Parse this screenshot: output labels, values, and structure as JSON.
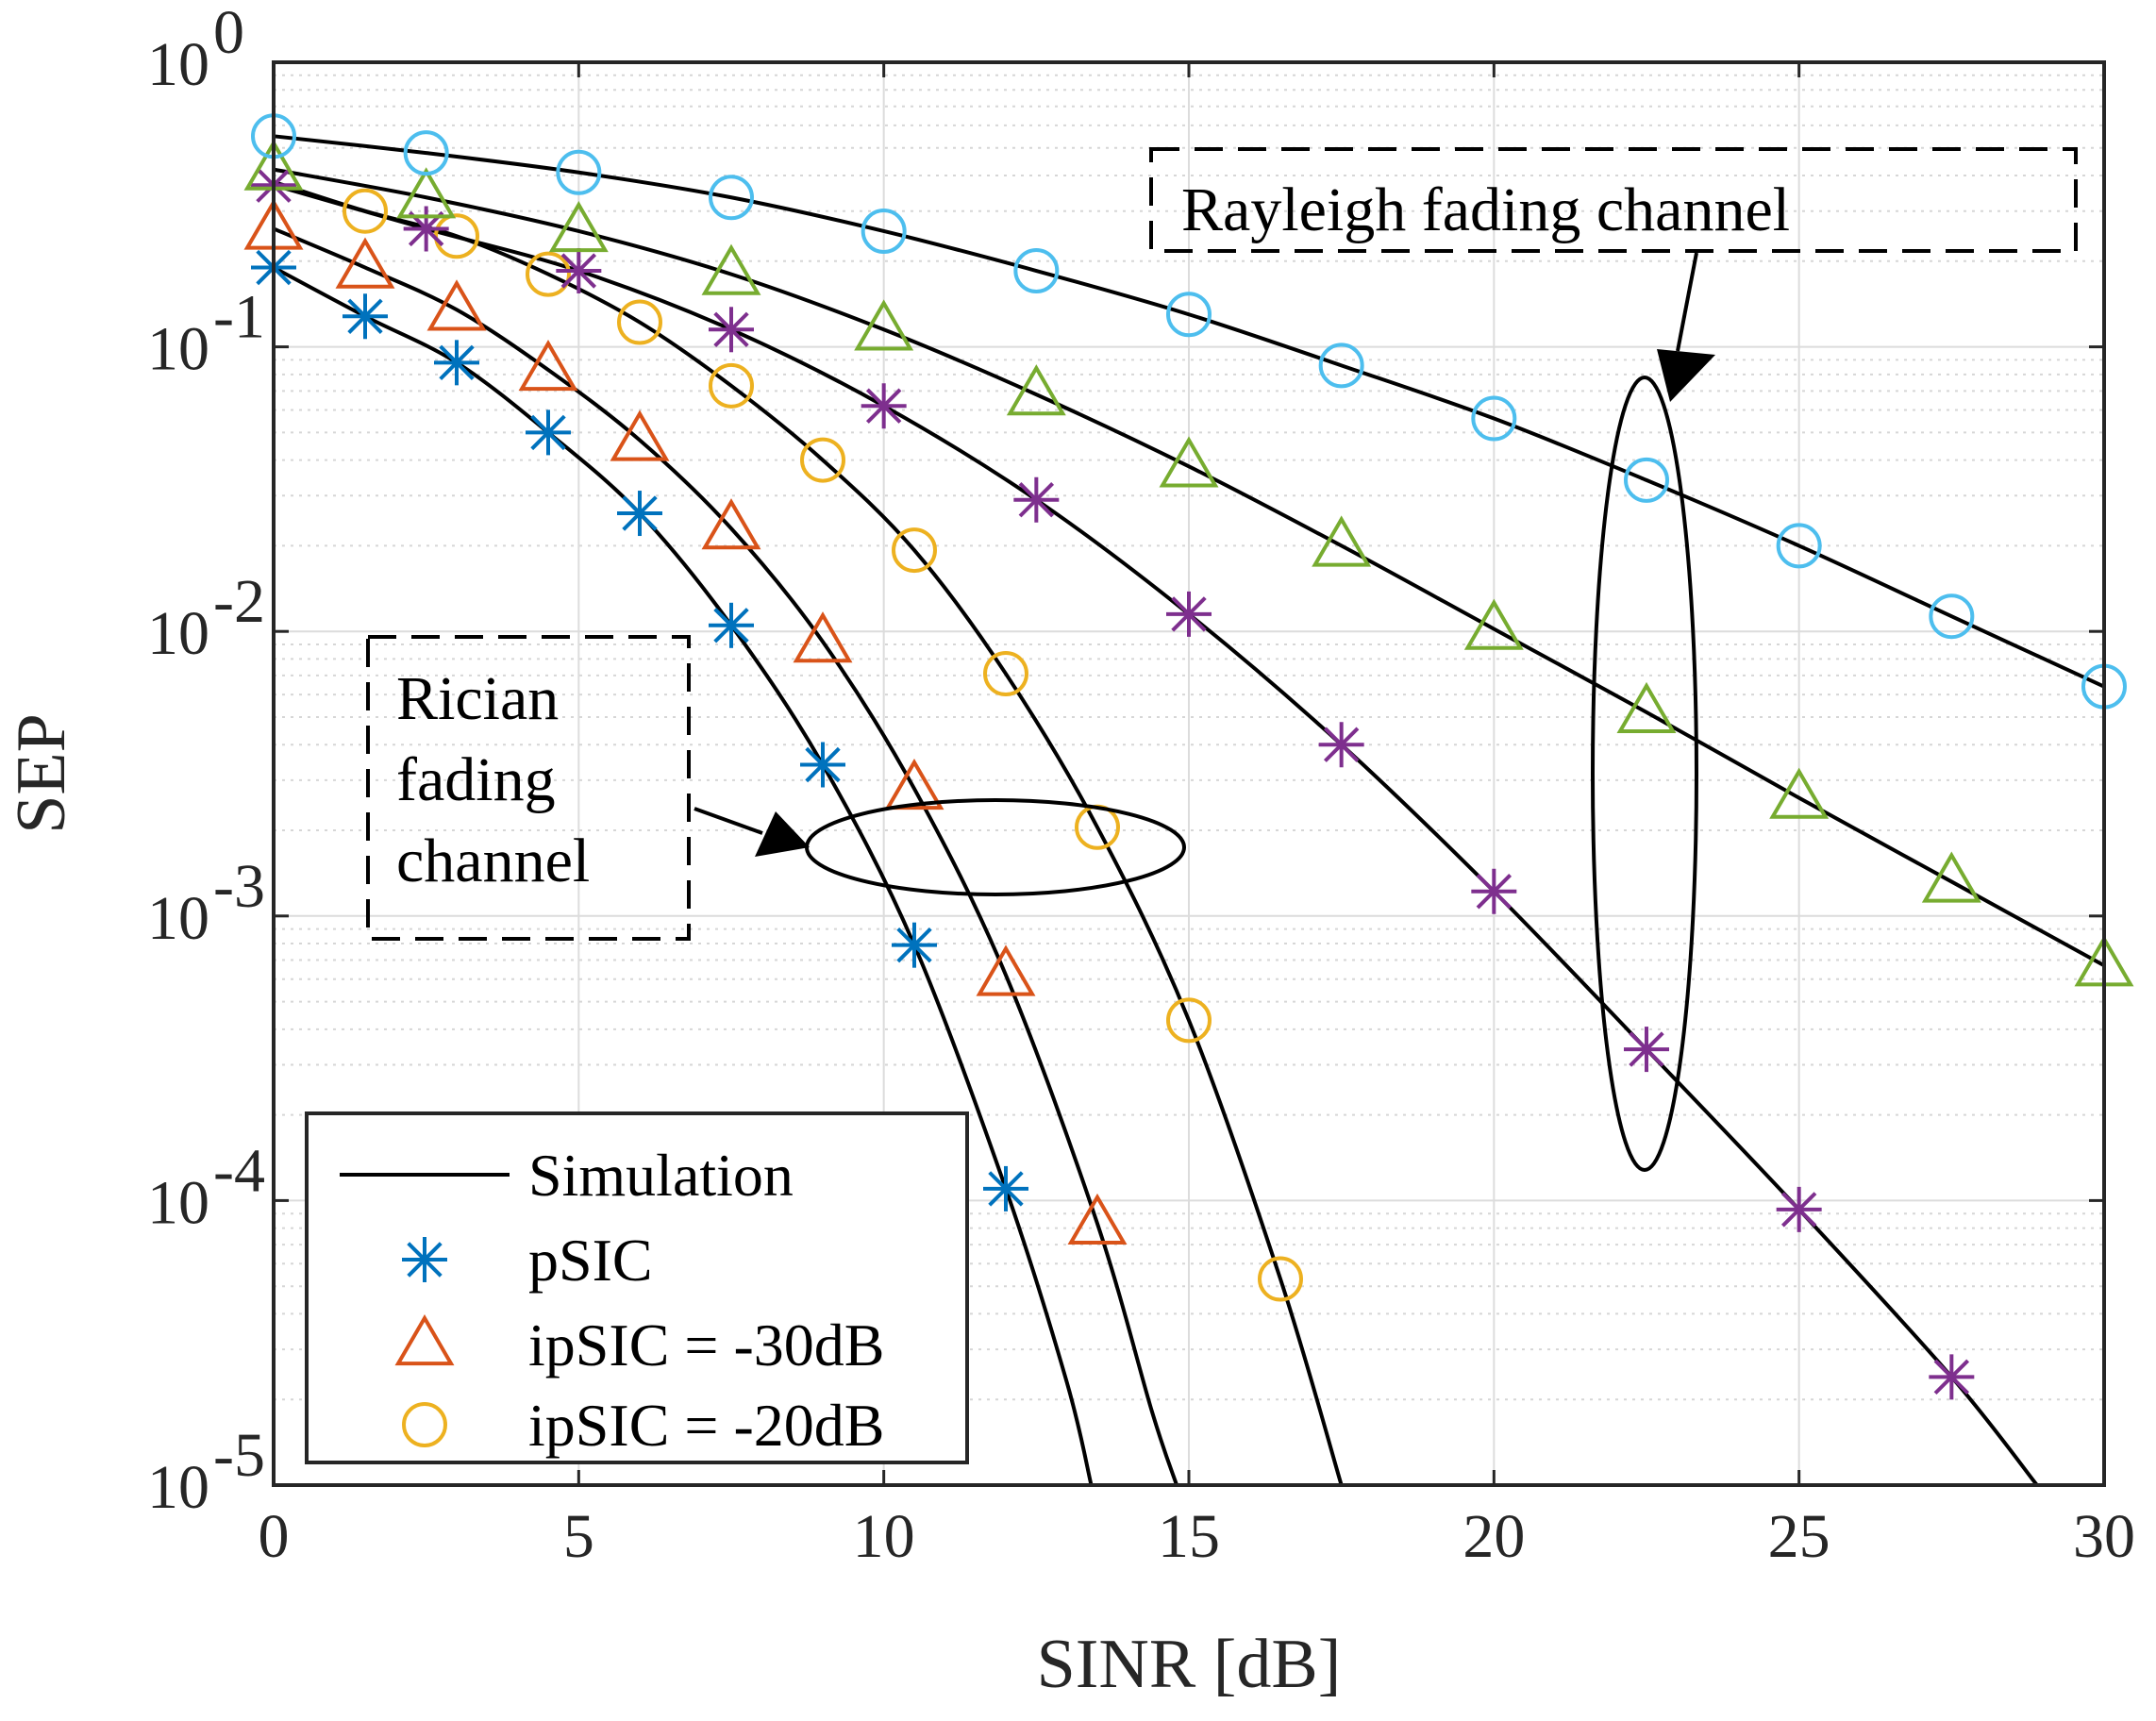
{
  "chart_data": {
    "type": "line",
    "xlabel": "SINR [dB]",
    "ylabel": "SEP",
    "xlim": [
      0,
      30
    ],
    "ylim": [
      1e-05,
      1
    ],
    "yscale": "log",
    "grid": true,
    "minor_grid": true,
    "legend_position": "bottom-left",
    "x_ticks": [
      "0",
      "5",
      "10",
      "15",
      "20",
      "25",
      "30"
    ],
    "y_ticks": [
      {
        "base": "10",
        "exp": "0"
      },
      {
        "base": "10",
        "exp": "-1"
      },
      {
        "base": "10",
        "exp": "-2"
      },
      {
        "base": "10",
        "exp": "-3"
      },
      {
        "base": "10",
        "exp": "-4"
      },
      {
        "base": "10",
        "exp": "-5"
      }
    ],
    "legend": [
      {
        "label": "Simulation",
        "marker": "line",
        "color": "#000000"
      },
      {
        "label": "pSIC",
        "marker": "asterisk",
        "color": "#0072BD"
      },
      {
        "label": "ipSIC = -30dB",
        "marker": "triangle",
        "color": "#D95319"
      },
      {
        "label": "ipSIC = -20dB",
        "marker": "circle",
        "color": "#EDB120"
      }
    ],
    "annotations": [
      {
        "text": "Rayleigh fading channel"
      },
      {
        "text_lines": [
          "Rician",
          "fading",
          "channel"
        ]
      }
    ],
    "series": [
      {
        "marker": "asterisk",
        "color": "#0072BD",
        "group": "Rician",
        "points": [
          [
            0,
            0.19
          ],
          [
            1.5,
            0.128
          ],
          [
            3,
            0.088
          ],
          [
            4.5,
            0.05
          ],
          [
            6,
            0.026
          ],
          [
            7.5,
            0.0105
          ],
          [
            9,
            0.0034
          ],
          [
            10.5,
            0.00079
          ],
          [
            12,
            0.00011
          ]
        ],
        "curve": [
          [
            0,
            0.19
          ],
          [
            1.5,
            0.128
          ],
          [
            3,
            0.088
          ],
          [
            4.5,
            0.05
          ],
          [
            6,
            0.026
          ],
          [
            7.5,
            0.0105
          ],
          [
            9,
            0.0034
          ],
          [
            10.5,
            0.00079
          ],
          [
            12,
            0.00011
          ],
          [
            13.0,
            2.3e-05
          ],
          [
            13.4,
            1e-05
          ]
        ]
      },
      {
        "marker": "triangle",
        "color": "#D95319",
        "group": "Rician",
        "points": [
          [
            0,
            0.26
          ],
          [
            1.5,
            0.19
          ],
          [
            3,
            0.135
          ],
          [
            4.5,
            0.083
          ],
          [
            6,
            0.047
          ],
          [
            7.5,
            0.023
          ],
          [
            9,
            0.0092
          ],
          [
            10.5,
            0.0028
          ],
          [
            12,
            0.00062
          ],
          [
            13.5,
            8.3e-05
          ]
        ],
        "curve": [
          [
            0,
            0.26
          ],
          [
            1.5,
            0.19
          ],
          [
            3,
            0.135
          ],
          [
            4.5,
            0.083
          ],
          [
            6,
            0.047
          ],
          [
            7.5,
            0.023
          ],
          [
            9,
            0.0092
          ],
          [
            10.5,
            0.0028
          ],
          [
            12,
            0.00062
          ],
          [
            13.5,
            8.3e-05
          ],
          [
            14.4,
            1.8e-05
          ],
          [
            14.8,
            1e-05
          ]
        ]
      },
      {
        "marker": "circle",
        "color": "#EDB120",
        "group": "Rician",
        "points": [
          [
            1.5,
            0.3
          ],
          [
            3,
            0.245
          ],
          [
            4.5,
            0.18
          ],
          [
            6,
            0.122
          ],
          [
            7.5,
            0.073
          ],
          [
            9,
            0.04
          ],
          [
            10.5,
            0.0193
          ],
          [
            12,
            0.0071
          ],
          [
            13.5,
            0.00205
          ],
          [
            15,
            0.00043
          ],
          [
            16.5,
            5.3e-05
          ]
        ],
        "curve": [
          [
            0,
            0.38
          ],
          [
            1.5,
            0.3
          ],
          [
            3,
            0.245
          ],
          [
            4.5,
            0.18
          ],
          [
            6,
            0.122
          ],
          [
            7.5,
            0.073
          ],
          [
            9,
            0.04
          ],
          [
            10.5,
            0.0193
          ],
          [
            12,
            0.0071
          ],
          [
            13.5,
            0.00205
          ],
          [
            15,
            0.00043
          ],
          [
            16.5,
            5.3e-05
          ],
          [
            17.5,
            1e-05
          ]
        ]
      },
      {
        "marker": "asterisk",
        "color": "#7E2F8E",
        "group": "Rayleigh",
        "points": [
          [
            0,
            0.37
          ],
          [
            2.5,
            0.26
          ],
          [
            5,
            0.185
          ],
          [
            7.5,
            0.115
          ],
          [
            10,
            0.062
          ],
          [
            12.5,
            0.029
          ],
          [
            15,
            0.0115
          ],
          [
            17.5,
            0.004
          ],
          [
            20,
            0.00122
          ],
          [
            22.5,
            0.00034
          ],
          [
            25,
            9.3e-05
          ],
          [
            27.5,
            2.4e-05
          ]
        ],
        "curve": [
          [
            0,
            0.37
          ],
          [
            2.5,
            0.26
          ],
          [
            5,
            0.185
          ],
          [
            7.5,
            0.115
          ],
          [
            10,
            0.062
          ],
          [
            12.5,
            0.029
          ],
          [
            15,
            0.0115
          ],
          [
            17.5,
            0.004
          ],
          [
            20,
            0.00122
          ],
          [
            22.5,
            0.00034
          ],
          [
            25,
            9.3e-05
          ],
          [
            27.5,
            2.4e-05
          ],
          [
            28.9,
            1e-05
          ]
        ]
      },
      {
        "marker": "triangle",
        "color": "#77AC30",
        "group": "Rayleigh",
        "points": [
          [
            0,
            0.42
          ],
          [
            2.5,
            0.335
          ],
          [
            5,
            0.255
          ],
          [
            7.5,
            0.18
          ],
          [
            10,
            0.115
          ],
          [
            12.5,
            0.068
          ],
          [
            15,
            0.038
          ],
          [
            17.5,
            0.02
          ],
          [
            20,
            0.0102
          ],
          [
            22.5,
            0.0052
          ],
          [
            25,
            0.0026
          ],
          [
            27.5,
            0.00132
          ],
          [
            30,
            0.00067
          ]
        ],
        "curve": [
          [
            0,
            0.42
          ],
          [
            2.5,
            0.335
          ],
          [
            5,
            0.255
          ],
          [
            7.5,
            0.18
          ],
          [
            10,
            0.115
          ],
          [
            12.5,
            0.068
          ],
          [
            15,
            0.038
          ],
          [
            17.5,
            0.02
          ],
          [
            20,
            0.0102
          ],
          [
            22.5,
            0.0052
          ],
          [
            25,
            0.0026
          ],
          [
            27.5,
            0.00132
          ],
          [
            30,
            0.00067
          ]
        ]
      },
      {
        "marker": "circle",
        "color": "#4DBEEE",
        "group": "Rayleigh",
        "points": [
          [
            0,
            0.55
          ],
          [
            2.5,
            0.48
          ],
          [
            5,
            0.41
          ],
          [
            7.5,
            0.335
          ],
          [
            10,
            0.255
          ],
          [
            12.5,
            0.185
          ],
          [
            15,
            0.13
          ],
          [
            17.5,
            0.086
          ],
          [
            20,
            0.056
          ],
          [
            22.5,
            0.034
          ],
          [
            25,
            0.02
          ],
          [
            27.5,
            0.0113
          ],
          [
            30,
            0.0064
          ]
        ],
        "curve": [
          [
            0,
            0.55
          ],
          [
            2.5,
            0.48
          ],
          [
            5,
            0.41
          ],
          [
            7.5,
            0.335
          ],
          [
            10,
            0.255
          ],
          [
            12.5,
            0.185
          ],
          [
            15,
            0.13
          ],
          [
            17.5,
            0.086
          ],
          [
            20,
            0.056
          ],
          [
            22.5,
            0.034
          ],
          [
            25,
            0.02
          ],
          [
            27.5,
            0.0113
          ],
          [
            30,
            0.0064
          ]
        ]
      }
    ]
  }
}
